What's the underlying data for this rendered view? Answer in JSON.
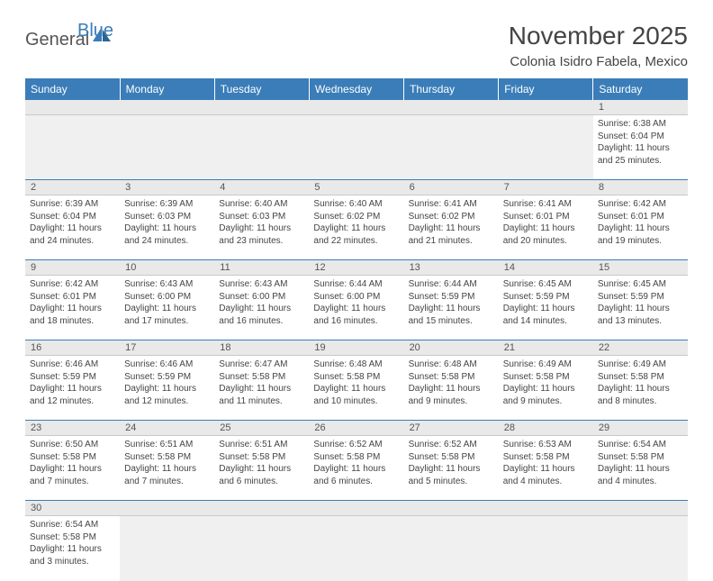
{
  "logo": {
    "textA": "General",
    "textB": "Blue"
  },
  "title": "November 2025",
  "location": "Colonia Isidro Fabela, Mexico",
  "colors": {
    "header_bg": "#3a7db8",
    "header_text": "#ffffff",
    "daynum_bg": "#e9e9e9",
    "border": "#3a7db8",
    "text": "#444444",
    "page_bg": "#ffffff"
  },
  "typography": {
    "title_fontsize_pt": 21,
    "location_fontsize_pt": 11,
    "dow_fontsize_pt": 9,
    "cell_fontsize_pt": 7.5
  },
  "dow": [
    "Sunday",
    "Monday",
    "Tuesday",
    "Wednesday",
    "Thursday",
    "Friday",
    "Saturday"
  ],
  "weeks": [
    [
      null,
      null,
      null,
      null,
      null,
      null,
      {
        "n": "1",
        "sr": "Sunrise: 6:38 AM",
        "ss": "Sunset: 6:04 PM",
        "dl": "Daylight: 11 hours and 25 minutes."
      }
    ],
    [
      {
        "n": "2",
        "sr": "Sunrise: 6:39 AM",
        "ss": "Sunset: 6:04 PM",
        "dl": "Daylight: 11 hours and 24 minutes."
      },
      {
        "n": "3",
        "sr": "Sunrise: 6:39 AM",
        "ss": "Sunset: 6:03 PM",
        "dl": "Daylight: 11 hours and 24 minutes."
      },
      {
        "n": "4",
        "sr": "Sunrise: 6:40 AM",
        "ss": "Sunset: 6:03 PM",
        "dl": "Daylight: 11 hours and 23 minutes."
      },
      {
        "n": "5",
        "sr": "Sunrise: 6:40 AM",
        "ss": "Sunset: 6:02 PM",
        "dl": "Daylight: 11 hours and 22 minutes."
      },
      {
        "n": "6",
        "sr": "Sunrise: 6:41 AM",
        "ss": "Sunset: 6:02 PM",
        "dl": "Daylight: 11 hours and 21 minutes."
      },
      {
        "n": "7",
        "sr": "Sunrise: 6:41 AM",
        "ss": "Sunset: 6:01 PM",
        "dl": "Daylight: 11 hours and 20 minutes."
      },
      {
        "n": "8",
        "sr": "Sunrise: 6:42 AM",
        "ss": "Sunset: 6:01 PM",
        "dl": "Daylight: 11 hours and 19 minutes."
      }
    ],
    [
      {
        "n": "9",
        "sr": "Sunrise: 6:42 AM",
        "ss": "Sunset: 6:01 PM",
        "dl": "Daylight: 11 hours and 18 minutes."
      },
      {
        "n": "10",
        "sr": "Sunrise: 6:43 AM",
        "ss": "Sunset: 6:00 PM",
        "dl": "Daylight: 11 hours and 17 minutes."
      },
      {
        "n": "11",
        "sr": "Sunrise: 6:43 AM",
        "ss": "Sunset: 6:00 PM",
        "dl": "Daylight: 11 hours and 16 minutes."
      },
      {
        "n": "12",
        "sr": "Sunrise: 6:44 AM",
        "ss": "Sunset: 6:00 PM",
        "dl": "Daylight: 11 hours and 16 minutes."
      },
      {
        "n": "13",
        "sr": "Sunrise: 6:44 AM",
        "ss": "Sunset: 5:59 PM",
        "dl": "Daylight: 11 hours and 15 minutes."
      },
      {
        "n": "14",
        "sr": "Sunrise: 6:45 AM",
        "ss": "Sunset: 5:59 PM",
        "dl": "Daylight: 11 hours and 14 minutes."
      },
      {
        "n": "15",
        "sr": "Sunrise: 6:45 AM",
        "ss": "Sunset: 5:59 PM",
        "dl": "Daylight: 11 hours and 13 minutes."
      }
    ],
    [
      {
        "n": "16",
        "sr": "Sunrise: 6:46 AM",
        "ss": "Sunset: 5:59 PM",
        "dl": "Daylight: 11 hours and 12 minutes."
      },
      {
        "n": "17",
        "sr": "Sunrise: 6:46 AM",
        "ss": "Sunset: 5:59 PM",
        "dl": "Daylight: 11 hours and 12 minutes."
      },
      {
        "n": "18",
        "sr": "Sunrise: 6:47 AM",
        "ss": "Sunset: 5:58 PM",
        "dl": "Daylight: 11 hours and 11 minutes."
      },
      {
        "n": "19",
        "sr": "Sunrise: 6:48 AM",
        "ss": "Sunset: 5:58 PM",
        "dl": "Daylight: 11 hours and 10 minutes."
      },
      {
        "n": "20",
        "sr": "Sunrise: 6:48 AM",
        "ss": "Sunset: 5:58 PM",
        "dl": "Daylight: 11 hours and 9 minutes."
      },
      {
        "n": "21",
        "sr": "Sunrise: 6:49 AM",
        "ss": "Sunset: 5:58 PM",
        "dl": "Daylight: 11 hours and 9 minutes."
      },
      {
        "n": "22",
        "sr": "Sunrise: 6:49 AM",
        "ss": "Sunset: 5:58 PM",
        "dl": "Daylight: 11 hours and 8 minutes."
      }
    ],
    [
      {
        "n": "23",
        "sr": "Sunrise: 6:50 AM",
        "ss": "Sunset: 5:58 PM",
        "dl": "Daylight: 11 hours and 7 minutes."
      },
      {
        "n": "24",
        "sr": "Sunrise: 6:51 AM",
        "ss": "Sunset: 5:58 PM",
        "dl": "Daylight: 11 hours and 7 minutes."
      },
      {
        "n": "25",
        "sr": "Sunrise: 6:51 AM",
        "ss": "Sunset: 5:58 PM",
        "dl": "Daylight: 11 hours and 6 minutes."
      },
      {
        "n": "26",
        "sr": "Sunrise: 6:52 AM",
        "ss": "Sunset: 5:58 PM",
        "dl": "Daylight: 11 hours and 6 minutes."
      },
      {
        "n": "27",
        "sr": "Sunrise: 6:52 AM",
        "ss": "Sunset: 5:58 PM",
        "dl": "Daylight: 11 hours and 5 minutes."
      },
      {
        "n": "28",
        "sr": "Sunrise: 6:53 AM",
        "ss": "Sunset: 5:58 PM",
        "dl": "Daylight: 11 hours and 4 minutes."
      },
      {
        "n": "29",
        "sr": "Sunrise: 6:54 AM",
        "ss": "Sunset: 5:58 PM",
        "dl": "Daylight: 11 hours and 4 minutes."
      }
    ],
    [
      {
        "n": "30",
        "sr": "Sunrise: 6:54 AM",
        "ss": "Sunset: 5:58 PM",
        "dl": "Daylight: 11 hours and 3 minutes."
      },
      null,
      null,
      null,
      null,
      null,
      null
    ]
  ]
}
